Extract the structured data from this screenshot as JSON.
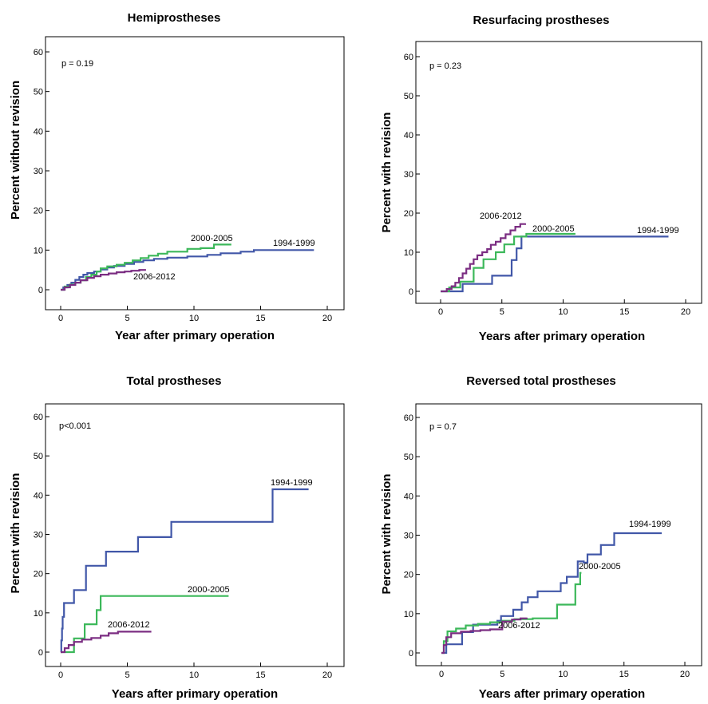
{
  "chart_data": [
    {
      "type": "line",
      "step": true,
      "title": "Hemiprostheses",
      "xlabel": "Year after primary operation",
      "ylabel": "Percent without revision",
      "annotation": "p = 0.19",
      "xlim": [
        0,
        20
      ],
      "ylim": [
        0,
        60
      ],
      "xticks": [
        0,
        5,
        10,
        15,
        20
      ],
      "yticks": [
        0,
        10,
        20,
        30,
        40,
        50,
        60
      ],
      "grid": false,
      "series": [
        {
          "name": "1994-1999",
          "color": "#4157a8",
          "points": [
            [
              0,
              0
            ],
            [
              0.2,
              0.6
            ],
            [
              0.5,
              1.2
            ],
            [
              0.8,
              1.8
            ],
            [
              1.1,
              2.5
            ],
            [
              1.4,
              3.2
            ],
            [
              1.7,
              3.8
            ],
            [
              2.0,
              4.2
            ],
            [
              2.5,
              4.6
            ],
            [
              3.0,
              5.1
            ],
            [
              3.5,
              5.6
            ],
            [
              4.0,
              6.0
            ],
            [
              4.8,
              6.5
            ],
            [
              5.5,
              7.0
            ],
            [
              6.2,
              7.4
            ],
            [
              7.0,
              7.8
            ],
            [
              8.0,
              8.1
            ],
            [
              9.5,
              8.4
            ],
            [
              11.0,
              8.8
            ],
            [
              12.0,
              9.2
            ],
            [
              13.5,
              9.6
            ],
            [
              14.5,
              10.0
            ],
            [
              19.0,
              10.0
            ]
          ]
        },
        {
          "name": "2000-2005",
          "color": "#3cb85a",
          "points": [
            [
              0,
              0
            ],
            [
              0.3,
              0.8
            ],
            [
              0.7,
              1.3
            ],
            [
              1.1,
              1.8
            ],
            [
              1.5,
              2.4
            ],
            [
              1.9,
              3.2
            ],
            [
              2.3,
              3.8
            ],
            [
              2.7,
              4.6
            ],
            [
              3.0,
              5.4
            ],
            [
              3.5,
              5.9
            ],
            [
              4.2,
              6.3
            ],
            [
              4.8,
              6.8
            ],
            [
              5.4,
              7.4
            ],
            [
              6.0,
              8.0
            ],
            [
              6.6,
              8.6
            ],
            [
              7.3,
              9.1
            ],
            [
              8.0,
              9.6
            ],
            [
              9.5,
              10.3
            ],
            [
              10.5,
              10.5
            ],
            [
              11.5,
              11.4
            ],
            [
              12.8,
              11.4
            ]
          ]
        },
        {
          "name": "2006-2012",
          "color": "#7b2d82",
          "points": [
            [
              0,
              0
            ],
            [
              0.3,
              0.6
            ],
            [
              0.7,
              1.2
            ],
            [
              1.1,
              1.8
            ],
            [
              1.5,
              2.4
            ],
            [
              2.0,
              3.0
            ],
            [
              2.5,
              3.4
            ],
            [
              3.0,
              3.8
            ],
            [
              3.6,
              4.1
            ],
            [
              4.2,
              4.4
            ],
            [
              4.8,
              4.6
            ],
            [
              5.3,
              4.8
            ],
            [
              5.9,
              5.0
            ],
            [
              6.4,
              5.0
            ]
          ]
        }
      ]
    },
    {
      "type": "line",
      "step": true,
      "title": "Resurfacing prostheses",
      "xlabel": "Years after primary operation",
      "ylabel": "Percent with revision",
      "annotation": "p = 0.23",
      "xlim": [
        0,
        20
      ],
      "ylim": [
        0,
        60
      ],
      "xticks": [
        0,
        5,
        10,
        15,
        20
      ],
      "yticks": [
        0,
        10,
        20,
        30,
        40,
        50,
        60
      ],
      "grid": false,
      "series": [
        {
          "name": "1994-1999",
          "color": "#4157a8",
          "points": [
            [
              0,
              0
            ],
            [
              1.8,
              0
            ],
            [
              1.8,
              1.9
            ],
            [
              4.2,
              1.9
            ],
            [
              4.2,
              4.0
            ],
            [
              5.8,
              4.0
            ],
            [
              5.8,
              8.0
            ],
            [
              6.2,
              8.0
            ],
            [
              6.2,
              11.0
            ],
            [
              6.6,
              11.0
            ],
            [
              6.6,
              14.0
            ],
            [
              18.6,
              14.0
            ]
          ]
        },
        {
          "name": "2000-2005",
          "color": "#3cb85a",
          "points": [
            [
              0,
              0
            ],
            [
              0.7,
              0
            ],
            [
              0.7,
              1.0
            ],
            [
              1.6,
              1.0
            ],
            [
              1.6,
              2.5
            ],
            [
              2.7,
              2.5
            ],
            [
              2.7,
              6.0
            ],
            [
              3.5,
              6.0
            ],
            [
              3.5,
              8.2
            ],
            [
              4.5,
              8.2
            ],
            [
              4.5,
              10.0
            ],
            [
              5.2,
              10.0
            ],
            [
              5.2,
              12.0
            ],
            [
              6.0,
              12.0
            ],
            [
              6.0,
              14.0
            ],
            [
              7.0,
              14.0
            ],
            [
              7.0,
              14.7
            ],
            [
              11.0,
              14.7
            ]
          ]
        },
        {
          "name": "2006-2012",
          "color": "#7b2d82",
          "points": [
            [
              0,
              0
            ],
            [
              0.5,
              0.6
            ],
            [
              0.9,
              1.3
            ],
            [
              1.2,
              2.2
            ],
            [
              1.5,
              3.4
            ],
            [
              1.8,
              4.6
            ],
            [
              2.1,
              5.8
            ],
            [
              2.4,
              7.0
            ],
            [
              2.7,
              8.2
            ],
            [
              3.0,
              9.2
            ],
            [
              3.4,
              10.0
            ],
            [
              3.8,
              10.8
            ],
            [
              4.1,
              11.9
            ],
            [
              4.5,
              12.7
            ],
            [
              4.9,
              13.6
            ],
            [
              5.3,
              14.6
            ],
            [
              5.7,
              15.6
            ],
            [
              6.1,
              16.5
            ],
            [
              6.5,
              17.2
            ],
            [
              6.9,
              17.4
            ]
          ]
        }
      ]
    },
    {
      "type": "line",
      "step": true,
      "title": "Total prostheses",
      "xlabel": "Years after primary operation",
      "ylabel": "Percent with revision",
      "annotation": "p<0.001",
      "xlim": [
        0,
        20
      ],
      "ylim": [
        0,
        60
      ],
      "xticks": [
        0,
        5,
        10,
        15,
        20
      ],
      "yticks": [
        0,
        10,
        20,
        30,
        40,
        50,
        60
      ],
      "grid": false,
      "series": [
        {
          "name": "1994-1999",
          "color": "#4157a8",
          "points": [
            [
              0,
              0
            ],
            [
              0.05,
              3.0
            ],
            [
              0.1,
              3.0
            ],
            [
              0.1,
              6.0
            ],
            [
              0.15,
              6.0
            ],
            [
              0.15,
              9.0
            ],
            [
              0.25,
              9.0
            ],
            [
              0.25,
              12.5
            ],
            [
              1.0,
              12.5
            ],
            [
              1.0,
              15.8
            ],
            [
              1.9,
              15.8
            ],
            [
              1.9,
              22.0
            ],
            [
              3.4,
              22.0
            ],
            [
              3.4,
              25.6
            ],
            [
              5.8,
              25.6
            ],
            [
              5.8,
              29.3
            ],
            [
              8.3,
              29.3
            ],
            [
              8.3,
              33.2
            ],
            [
              15.9,
              33.2
            ],
            [
              15.9,
              41.5
            ],
            [
              18.6,
              41.5
            ]
          ]
        },
        {
          "name": "2000-2005",
          "color": "#3cb85a",
          "points": [
            [
              0,
              0
            ],
            [
              1.0,
              0
            ],
            [
              1.0,
              3.5
            ],
            [
              1.8,
              3.5
            ],
            [
              1.8,
              7.1
            ],
            [
              2.7,
              7.1
            ],
            [
              2.7,
              10.7
            ],
            [
              3.0,
              10.7
            ],
            [
              3.0,
              14.3
            ],
            [
              12.6,
              14.3
            ]
          ]
        },
        {
          "name": "2006-2012",
          "color": "#7b2d82",
          "points": [
            [
              0,
              0
            ],
            [
              0.3,
              1.0
            ],
            [
              0.6,
              1.8
            ],
            [
              1.0,
              2.6
            ],
            [
              1.6,
              3.2
            ],
            [
              2.3,
              3.6
            ],
            [
              3.0,
              4.2
            ],
            [
              3.6,
              4.8
            ],
            [
              4.3,
              5.2
            ],
            [
              6.8,
              5.2
            ]
          ]
        }
      ]
    },
    {
      "type": "line",
      "step": true,
      "title": "Reversed total prostheses",
      "xlabel": "Years after primary operation",
      "ylabel": "Percent with revision",
      "annotation": "p = 0.7",
      "xlim": [
        0,
        20
      ],
      "ylim": [
        0,
        60
      ],
      "xticks": [
        0,
        5,
        10,
        15,
        20
      ],
      "yticks": [
        0,
        10,
        20,
        30,
        40,
        50,
        60
      ],
      "grid": false,
      "series": [
        {
          "name": "1994-1999",
          "color": "#4157a8",
          "points": [
            [
              0,
              0
            ],
            [
              0.4,
              0
            ],
            [
              0.4,
              2.2
            ],
            [
              1.7,
              2.2
            ],
            [
              1.7,
              5.3
            ],
            [
              2.6,
              5.3
            ],
            [
              2.6,
              7.2
            ],
            [
              4.6,
              7.2
            ],
            [
              4.6,
              8.2
            ],
            [
              4.9,
              8.2
            ],
            [
              4.9,
              9.4
            ],
            [
              5.9,
              9.4
            ],
            [
              5.9,
              11.0
            ],
            [
              6.6,
              11.0
            ],
            [
              6.6,
              12.9
            ],
            [
              7.1,
              12.9
            ],
            [
              7.1,
              14.2
            ],
            [
              7.9,
              14.2
            ],
            [
              7.9,
              15.7
            ],
            [
              9.8,
              15.7
            ],
            [
              9.8,
              17.8
            ],
            [
              10.3,
              17.8
            ],
            [
              10.3,
              19.4
            ],
            [
              11.2,
              19.4
            ],
            [
              11.2,
              23.3
            ],
            [
              11.7,
              23.3
            ],
            [
              11.7,
              23.0
            ],
            [
              12.0,
              23.0
            ],
            [
              12.0,
              25.1
            ],
            [
              13.1,
              25.1
            ],
            [
              13.1,
              27.5
            ],
            [
              14.2,
              27.5
            ],
            [
              14.2,
              30.5
            ],
            [
              18.1,
              30.5
            ]
          ]
        },
        {
          "name": "2000-2005",
          "color": "#3cb85a",
          "points": [
            [
              0,
              0
            ],
            [
              0.2,
              3.0
            ],
            [
              0.5,
              5.5
            ],
            [
              1.2,
              6.2
            ],
            [
              2.0,
              7.0
            ],
            [
              3.0,
              7.4
            ],
            [
              4.0,
              7.8
            ],
            [
              5.0,
              8.2
            ],
            [
              6.0,
              8.6
            ],
            [
              7.5,
              8.8
            ],
            [
              9.5,
              9.0
            ],
            [
              9.5,
              12.3
            ],
            [
              11.0,
              12.3
            ],
            [
              11.0,
              17.5
            ],
            [
              11.4,
              17.5
            ],
            [
              11.4,
              20.4
            ],
            [
              11.5,
              20.4
            ]
          ]
        },
        {
          "name": "2006-2012",
          "color": "#7b2d82",
          "points": [
            [
              0,
              0
            ],
            [
              0.2,
              2.0
            ],
            [
              0.4,
              4.0
            ],
            [
              0.8,
              5.0
            ],
            [
              1.6,
              5.4
            ],
            [
              2.4,
              5.6
            ],
            [
              3.2,
              5.8
            ],
            [
              4.0,
              6.0
            ],
            [
              5.0,
              6.2
            ],
            [
              5.0,
              8.0
            ],
            [
              5.8,
              8.5
            ],
            [
              6.5,
              8.8
            ],
            [
              7.0,
              9.0
            ]
          ]
        }
      ]
    }
  ]
}
